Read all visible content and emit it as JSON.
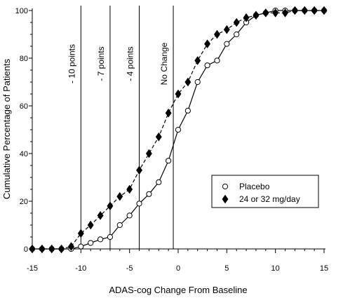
{
  "chart_data": {
    "type": "line",
    "xlabel": "ADAS-cog Change From Baseline",
    "ylabel": "Cumulative  Percentage of Patients",
    "xlim": [
      -15,
      15
    ],
    "ylim": [
      0,
      100
    ],
    "xticks": [
      -15,
      -10,
      -5,
      0,
      5,
      10,
      15
    ],
    "xtick_labels": [
      "-15",
      "-10",
      "-5",
      "0",
      "5",
      "10",
      "15"
    ],
    "yticks": [
      0,
      20,
      40,
      60,
      80,
      100
    ],
    "ytick_labels": [
      "0",
      "20",
      "40",
      "60",
      "80",
      "100"
    ],
    "grid": false,
    "legend_position": "center-right",
    "reference_lines": [
      {
        "x": -10,
        "label": "- 10 points"
      },
      {
        "x": -7,
        "label": "- 7 points"
      },
      {
        "x": -4,
        "label": "- 4 points"
      },
      {
        "x": -0.5,
        "label": "No Change"
      }
    ],
    "series": [
      {
        "name": "Placebo",
        "marker": "circle-open",
        "line": "solid",
        "color": "#000000",
        "x": [
          -15,
          -14,
          -13,
          -12,
          -11,
          -10,
          -9,
          -8,
          -7,
          -6,
          -5,
          -4,
          -3,
          -2,
          -1,
          0,
          1,
          2,
          3,
          4,
          5,
          6,
          7,
          8,
          9,
          10,
          11,
          12,
          13,
          14,
          15
        ],
        "y": [
          0,
          0,
          0,
          0,
          0,
          1,
          2.5,
          4,
          5,
          10,
          14,
          19,
          23,
          28,
          37,
          50,
          58,
          70,
          77,
          79,
          86,
          90,
          95,
          98,
          99,
          100,
          100,
          100,
          100,
          100,
          100
        ]
      },
      {
        "name": "24 or 32 mg/day",
        "marker": "diamond-filled",
        "line": "dashed",
        "color": "#000000",
        "x": [
          -15,
          -14,
          -13,
          -12,
          -11,
          -10,
          -9,
          -8,
          -7,
          -6,
          -5,
          -4,
          -3,
          -2,
          -1,
          0,
          1,
          2,
          3,
          4,
          5,
          6,
          7,
          8,
          9,
          10,
          11,
          12,
          13,
          14,
          15
        ],
        "y": [
          0,
          0,
          0,
          0,
          1,
          6.5,
          10,
          14,
          18,
          22,
          25,
          33,
          40,
          47,
          57,
          65,
          70,
          79,
          86,
          90,
          92,
          95,
          97,
          98,
          99,
          99,
          99,
          100,
          100,
          100,
          100
        ]
      }
    ]
  }
}
